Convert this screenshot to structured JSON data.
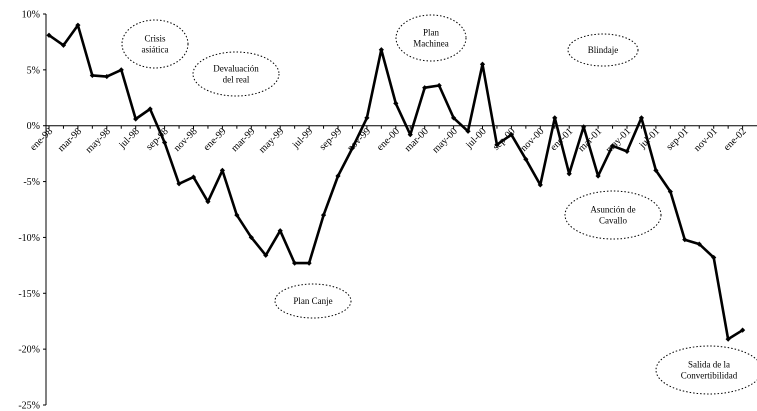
{
  "chart_data": {
    "type": "line",
    "ylim": [
      -25,
      10
    ],
    "y_ticks": [
      10,
      5,
      0,
      -5,
      -10,
      -15,
      -20,
      -25
    ],
    "y_tick_labels": [
      "10%",
      "5%",
      "0%",
      "-5%",
      "-10%",
      "-15%",
      "-20%",
      "-25%"
    ],
    "x_tick_labels": [
      "ene-98",
      "mar-98",
      "may-98",
      "jul-98",
      "sep-98",
      "nov-98",
      "ene-99",
      "mar-99",
      "may-99",
      "jul-99",
      "sep-99",
      "nov-99",
      "ene-00",
      "mar-00",
      "may-00",
      "jul-00",
      "sep-00",
      "nov-00",
      "ene-01",
      "mar-01",
      "may-01",
      "jul-01",
      "sep-01",
      "nov-01",
      "ene-02"
    ],
    "grid": false,
    "line_color": "#000000",
    "series": [
      {
        "values": [
          8.1,
          7.2,
          9.0,
          4.5,
          4.4,
          5.0,
          0.6,
          1.5,
          -1.5,
          -5.2,
          -4.6,
          -6.8,
          -4.0,
          -8.0,
          -10.0,
          -11.6,
          -9.4,
          -12.3,
          -12.3,
          -8.0,
          -4.5,
          -2.0,
          0.7,
          6.8,
          2.0,
          -0.8,
          3.4,
          3.6,
          0.7,
          -0.5,
          5.5,
          -1.7,
          -0.8,
          -3.0,
          -5.3,
          0.7,
          -4.3,
          -0.1,
          -4.5,
          -1.8,
          -2.3,
          0.7,
          -4.0,
          -5.9,
          -10.2,
          -10.6,
          -11.8,
          -19.1,
          -18.3
        ]
      }
    ],
    "annotations": [
      {
        "lines": [
          "Crisis",
          "asiática"
        ]
      },
      {
        "lines": [
          "Devaluación",
          "del real"
        ]
      },
      {
        "lines": [
          "Plan",
          "Machinea"
        ]
      },
      {
        "lines": [
          "Blindaje"
        ]
      },
      {
        "lines": [
          "Plan Canje"
        ]
      },
      {
        "lines": [
          "Asunción de",
          "Cavallo"
        ]
      },
      {
        "lines": [
          "Salida de la",
          "Convertibilidad"
        ]
      }
    ]
  }
}
